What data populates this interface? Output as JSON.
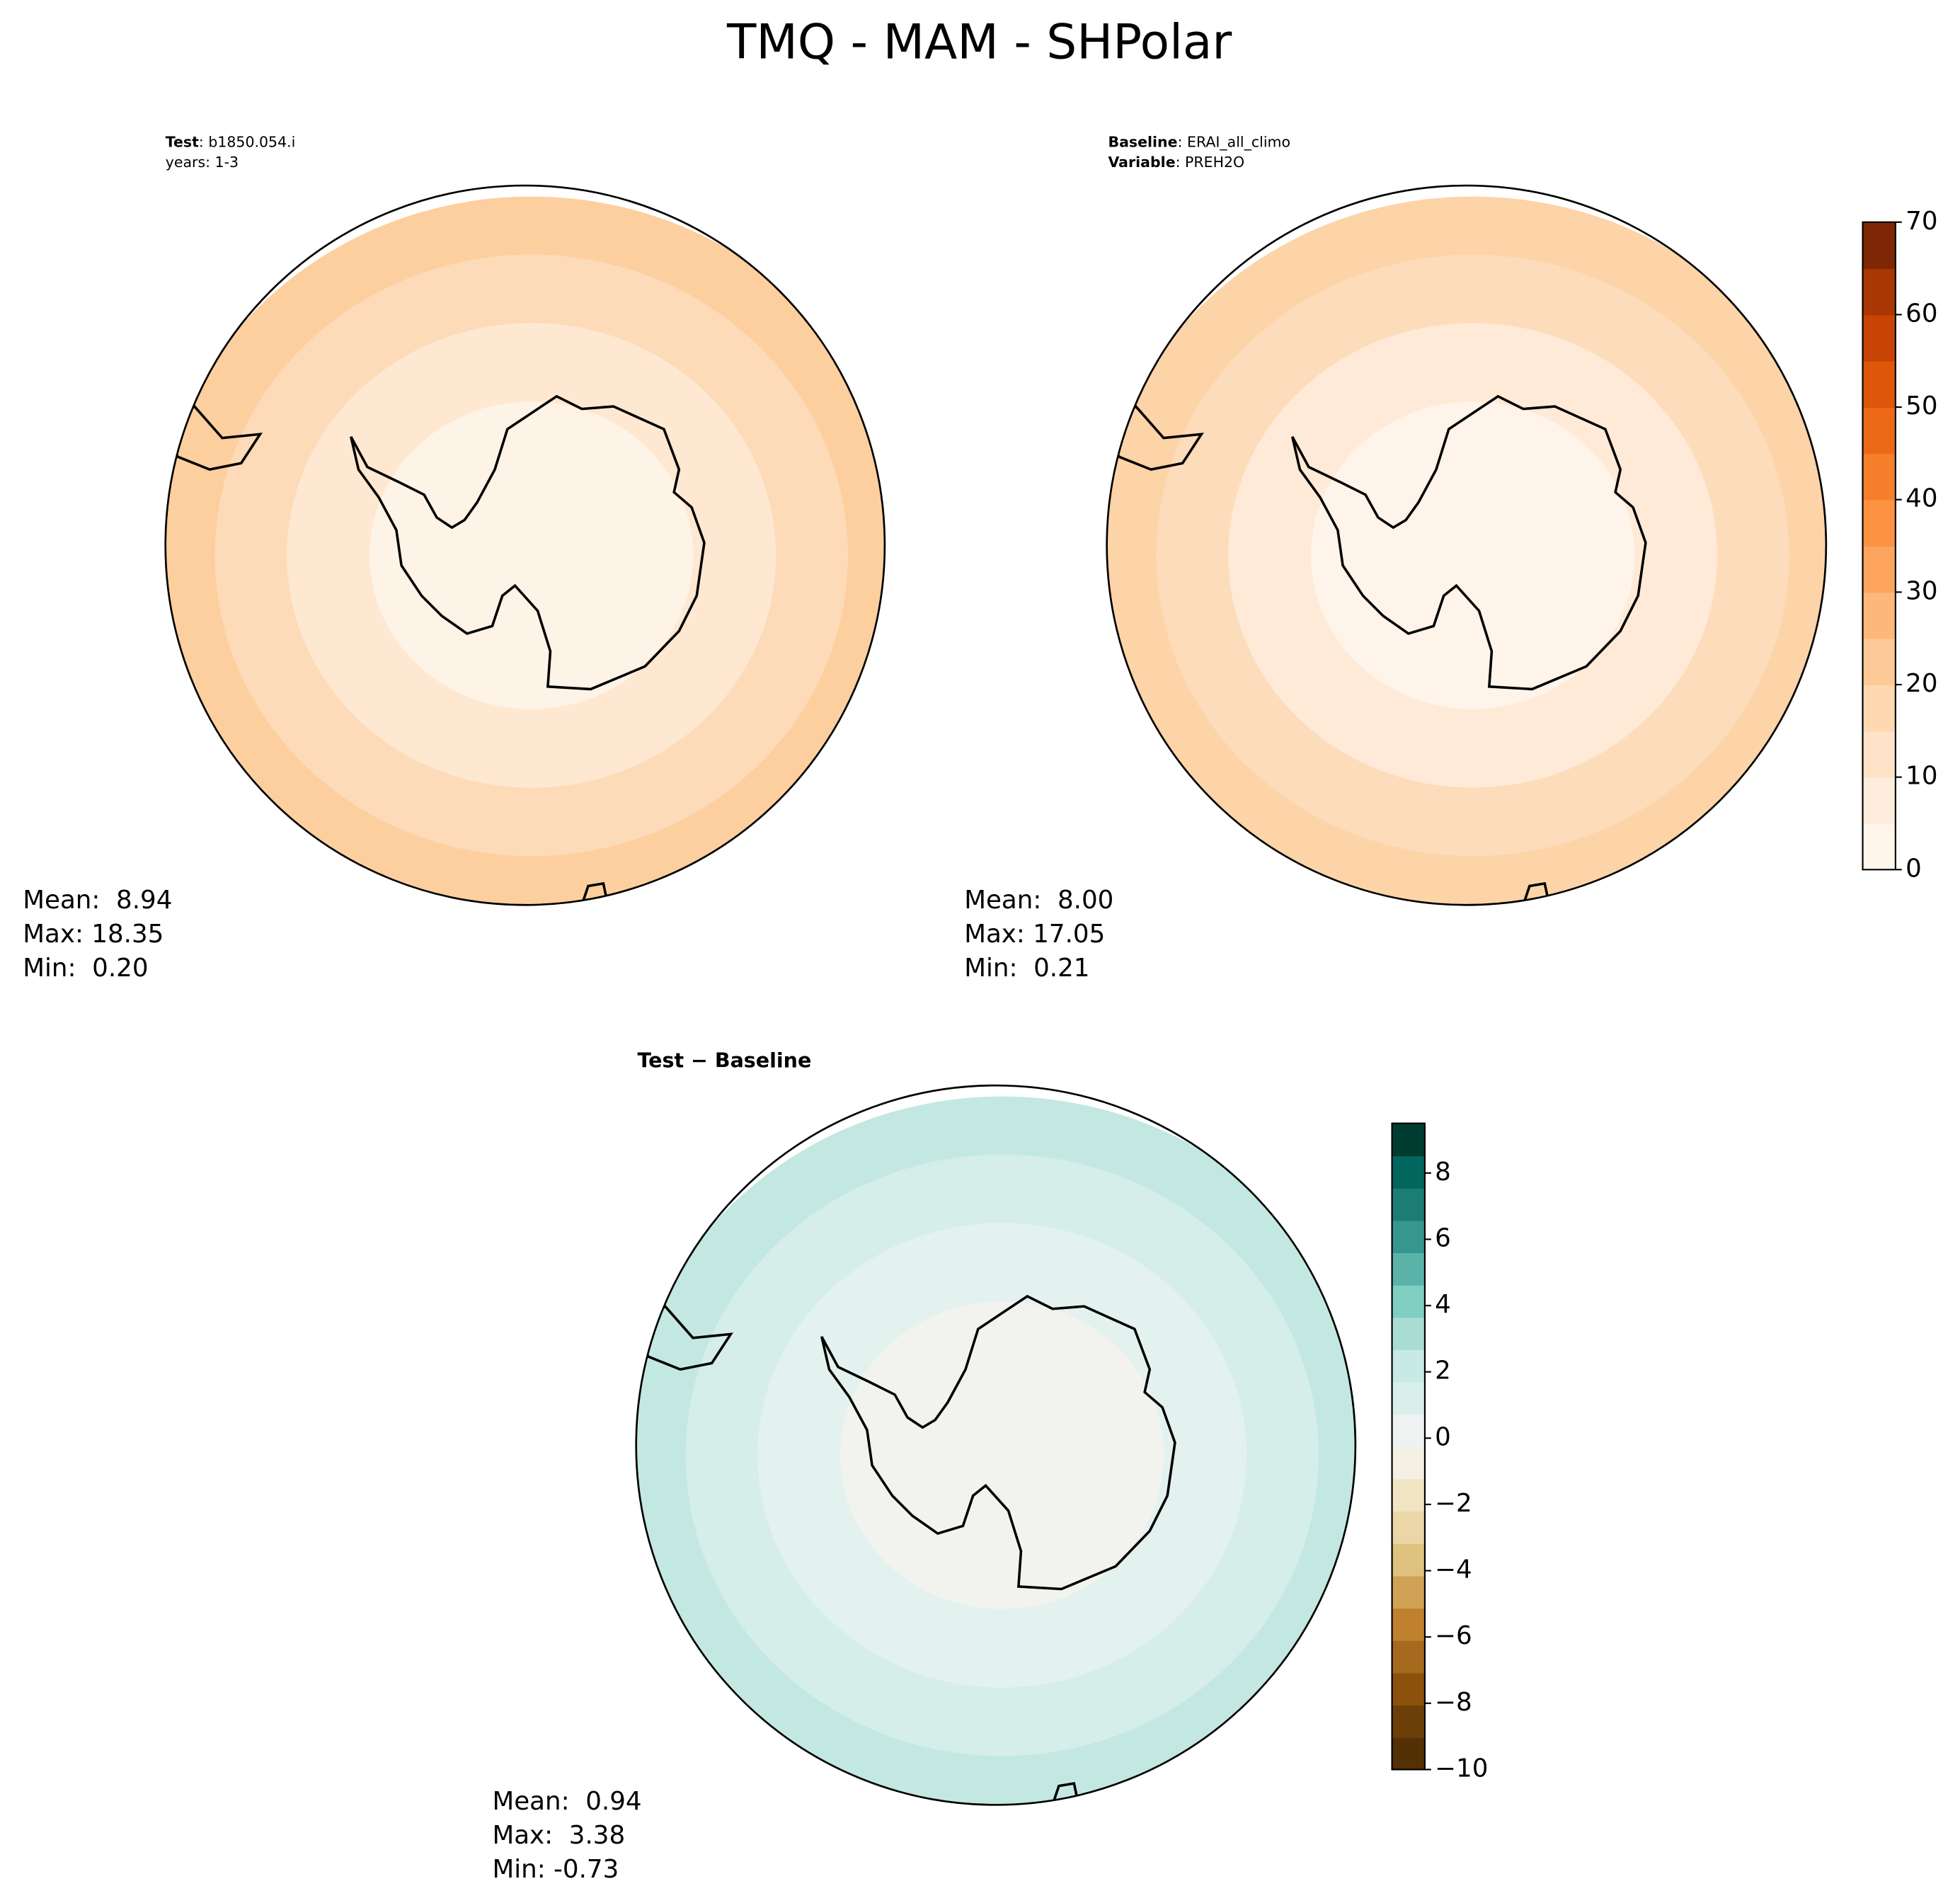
{
  "chart_data": {
    "type": "polar-map",
    "title": "TMQ - MAM - SHPolar",
    "panels": [
      {
        "subtitle": [
          {
            "bold": "Test",
            "text": ": b1850.054.i"
          },
          {
            "text": "years: 1-3"
          }
        ],
        "stats": [
          "Mean:  8.94",
          "Max: 18.35",
          "Min:  0.20"
        ],
        "fills": [
          "#fdcf9f",
          "#fddbb8",
          "#fee8d2",
          "#fef3e7"
        ]
      },
      {
        "subtitle": [
          {
            "bold": "Baseline",
            "text": ": ERAI_all_climo"
          },
          {
            "bold": "Variable",
            "text": ": PREH2O"
          }
        ],
        "stats": [
          "Mean:  8.00",
          "Max: 17.05",
          "Min:  0.21"
        ],
        "fills": [
          "#fdd3a8",
          "#fddcbb",
          "#feead6",
          "#fef4e9"
        ]
      },
      {
        "subtitle": [
          {
            "bold": "Test − Baseline"
          }
        ],
        "stats": [
          "Mean:  0.94",
          "Max:  3.38",
          "Min: -0.73"
        ],
        "fills": [
          "#c3e8e1",
          "#d5eeea",
          "#e3f2ef",
          "#f2f3ef"
        ]
      }
    ],
    "colorbars": [
      {
        "ylim": [
          0,
          70
        ],
        "yticks": [
          0,
          10,
          20,
          30,
          40,
          50,
          60,
          70
        ],
        "colors": [
          "#fff5eb",
          "#feeddc",
          "#fee3c8",
          "#fdd8b1",
          "#fdc997",
          "#fdb77a",
          "#fda55e",
          "#fd9243",
          "#f67f2b",
          "#ec6a17",
          "#dd560a",
          "#c84404",
          "#a83703",
          "#7f2704"
        ]
      },
      {
        "ylim": [
          -10,
          9.5
        ],
        "yticks": [
          {
            "value": -10,
            "label": "−10"
          },
          {
            "value": -8,
            "label": "−8"
          },
          {
            "value": -6,
            "label": "−6"
          },
          {
            "value": -4,
            "label": "−4"
          },
          {
            "value": -2,
            "label": "−2"
          },
          0,
          2,
          4,
          6,
          8
        ],
        "colors": [
          "#543005",
          "#6d3f08",
          "#8c510a",
          "#a66a1e",
          "#bf812d",
          "#cfa256",
          "#dfc27d",
          "#ead6a6",
          "#f1e4c3",
          "#f5f0e4",
          "#eef3f2",
          "#d9efeb",
          "#c7eae5",
          "#a9ddd4",
          "#80cdc1",
          "#5ab2a8",
          "#35978f",
          "#1b7d74",
          "#01665e",
          "#003c30"
        ]
      }
    ]
  }
}
